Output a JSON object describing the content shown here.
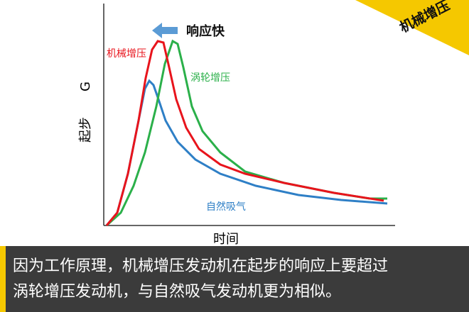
{
  "corner_tag": "机械增压",
  "callout": "响应快",
  "axes": {
    "y_label_main": "起步",
    "y_label_unit": "G",
    "x_label": "时间"
  },
  "curves": [
    {
      "label": "机械增压"
    },
    {
      "label": "涡轮增压"
    },
    {
      "label": "自然吸气"
    }
  ],
  "caption": {
    "lines": [
      "因为工作原理，机械增压发动机在起步的响应上要超过",
      "涡轮增压发动机，与自然吸气发动机更为相似。"
    ]
  }
}
